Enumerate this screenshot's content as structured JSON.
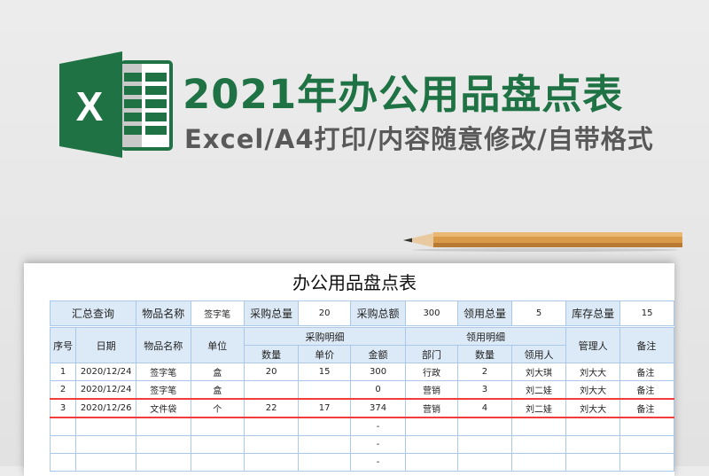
{
  "banner": {
    "title": "2021年办公用品盘点表",
    "subtitle": "Excel/A4打印/内容随意修改/自带格式",
    "logo_letter": "X",
    "brand_color": "#1f7244"
  },
  "sheet": {
    "title": "办公用品盘点表",
    "summary": [
      {
        "label": "汇总查询"
      },
      {
        "label": "物品名称",
        "value": "签字笔"
      },
      {
        "label": "采购总量",
        "value": "20"
      },
      {
        "label": "采购总额",
        "value": "300"
      },
      {
        "label": "领用总量",
        "value": "5"
      },
      {
        "label": "库存总量",
        "value": "15"
      }
    ],
    "headers": {
      "seq": "序号",
      "date": "日期",
      "item": "物品名称",
      "unit": "单位",
      "purchase_group": "采购明细",
      "qty": "数量",
      "price": "单价",
      "amount": "金额",
      "use_group": "领用明细",
      "dept": "部门",
      "use_qty": "数量",
      "user": "领用人",
      "manager": "管理人",
      "remark": "备注"
    },
    "rows": [
      [
        "1",
        "2020/12/24",
        "签字笔",
        "盒",
        "20",
        "15",
        "300",
        "行政",
        "2",
        "刘大琪",
        "刘大大",
        "备注"
      ],
      [
        "2",
        "2020/12/24",
        "签字笔",
        "盒",
        "",
        "",
        "0",
        "营销",
        "3",
        "刘二娃",
        "刘大大",
        "备注"
      ],
      [
        "3",
        "2020/12/26",
        "文件袋",
        "个",
        "22",
        "17",
        "374",
        "营销",
        "4",
        "刘二娃",
        "刘大大",
        "备注"
      ],
      [
        "",
        "",
        "",
        "",
        "",
        "",
        "-",
        "",
        "",
        "",
        "",
        ""
      ],
      [
        "",
        "",
        "",
        "",
        "",
        "",
        "-",
        "",
        "",
        "",
        "",
        ""
      ],
      [
        "",
        "",
        "",
        "",
        "",
        "",
        "-",
        "",
        "",
        "",
        "",
        ""
      ]
    ],
    "highlight_color": "#f23b3b"
  }
}
